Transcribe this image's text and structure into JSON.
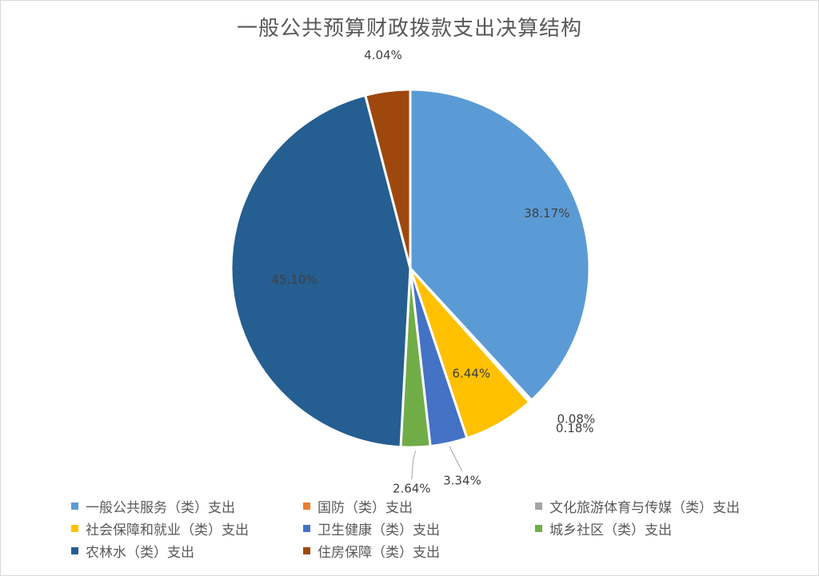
{
  "chart_data": {
    "type": "pie",
    "title": "一般公共预算财政拨款支出决算结构",
    "categories": [
      "一般公共服务（类）支出",
      "国防（类）支出",
      "文化旅游体育与传媒（类）支出",
      "社会保障和就业（类）支出",
      "卫生健康（类）支出",
      "城乡社区（类）支出",
      "农林水（类）支出",
      "住房保障（类）支出"
    ],
    "values": [
      38.17,
      0.08,
      0.18,
      6.44,
      3.34,
      2.64,
      45.1,
      4.04
    ],
    "data_labels": [
      "38.17%",
      "0.08%",
      "0.18%",
      "6.44%",
      "3.34%",
      "2.64%",
      "45.10%",
      "4.04%"
    ],
    "colors": [
      "#5b9bd5",
      "#ed7d31",
      "#a5a5a5",
      "#ffc000",
      "#4472c4",
      "#70ad47",
      "#255e91",
      "#9e480e"
    ],
    "legend_position": "bottom"
  }
}
